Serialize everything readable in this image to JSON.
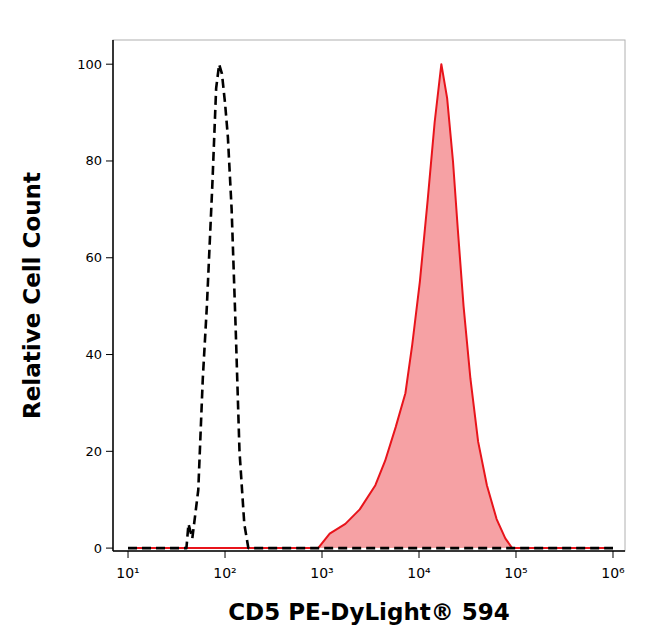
{
  "chart_data": {
    "type": "area",
    "xlabel": "CD5 PE-DyLight® 594",
    "ylabel": "Relative Cell Count",
    "log": "x",
    "xlim": [
      7,
      1330000
    ],
    "ylim": [
      -0.6,
      105
    ],
    "xticks": [
      {
        "value": 10,
        "label": "10¹"
      },
      {
        "value": 100,
        "label": "10²"
      },
      {
        "value": 1000,
        "label": "10³"
      },
      {
        "value": 10000,
        "label": "10⁴"
      },
      {
        "value": 100000,
        "label": "10⁵"
      },
      {
        "value": 1000000,
        "label": "10⁶"
      }
    ],
    "yticks": [
      0,
      20,
      40,
      60,
      80,
      100
    ],
    "series": [
      {
        "type": "line",
        "color": "#000000",
        "line_style": "dashed",
        "x": [
          10,
          40,
          42,
          46,
          53,
          59,
          65,
          74,
          81,
          87,
          93,
          100,
          107,
          117,
          129,
          141,
          158,
          174,
          1000000
        ],
        "values": [
          0,
          0,
          5,
          2,
          12,
          35,
          50,
          75,
          95,
          100,
          98,
          92,
          85,
          70,
          45,
          20,
          5,
          0,
          0
        ]
      },
      {
        "type": "area",
        "color": "#e8141b",
        "x": [
          10,
          912,
          1200,
          1740,
          2450,
          3550,
          4470,
          5750,
          7240,
          8510,
          10200,
          12300,
          14500,
          17000,
          19500,
          22400,
          25100,
          28800,
          33900,
          40700,
          50100,
          63100,
          77600,
          91200,
          1000000
        ],
        "values": [
          0,
          0,
          3,
          5,
          8,
          13,
          18,
          25,
          32,
          42,
          55,
          72,
          88,
          100,
          93,
          80,
          66,
          50,
          35,
          22,
          13,
          6,
          2,
          0,
          0
        ]
      }
    ]
  }
}
